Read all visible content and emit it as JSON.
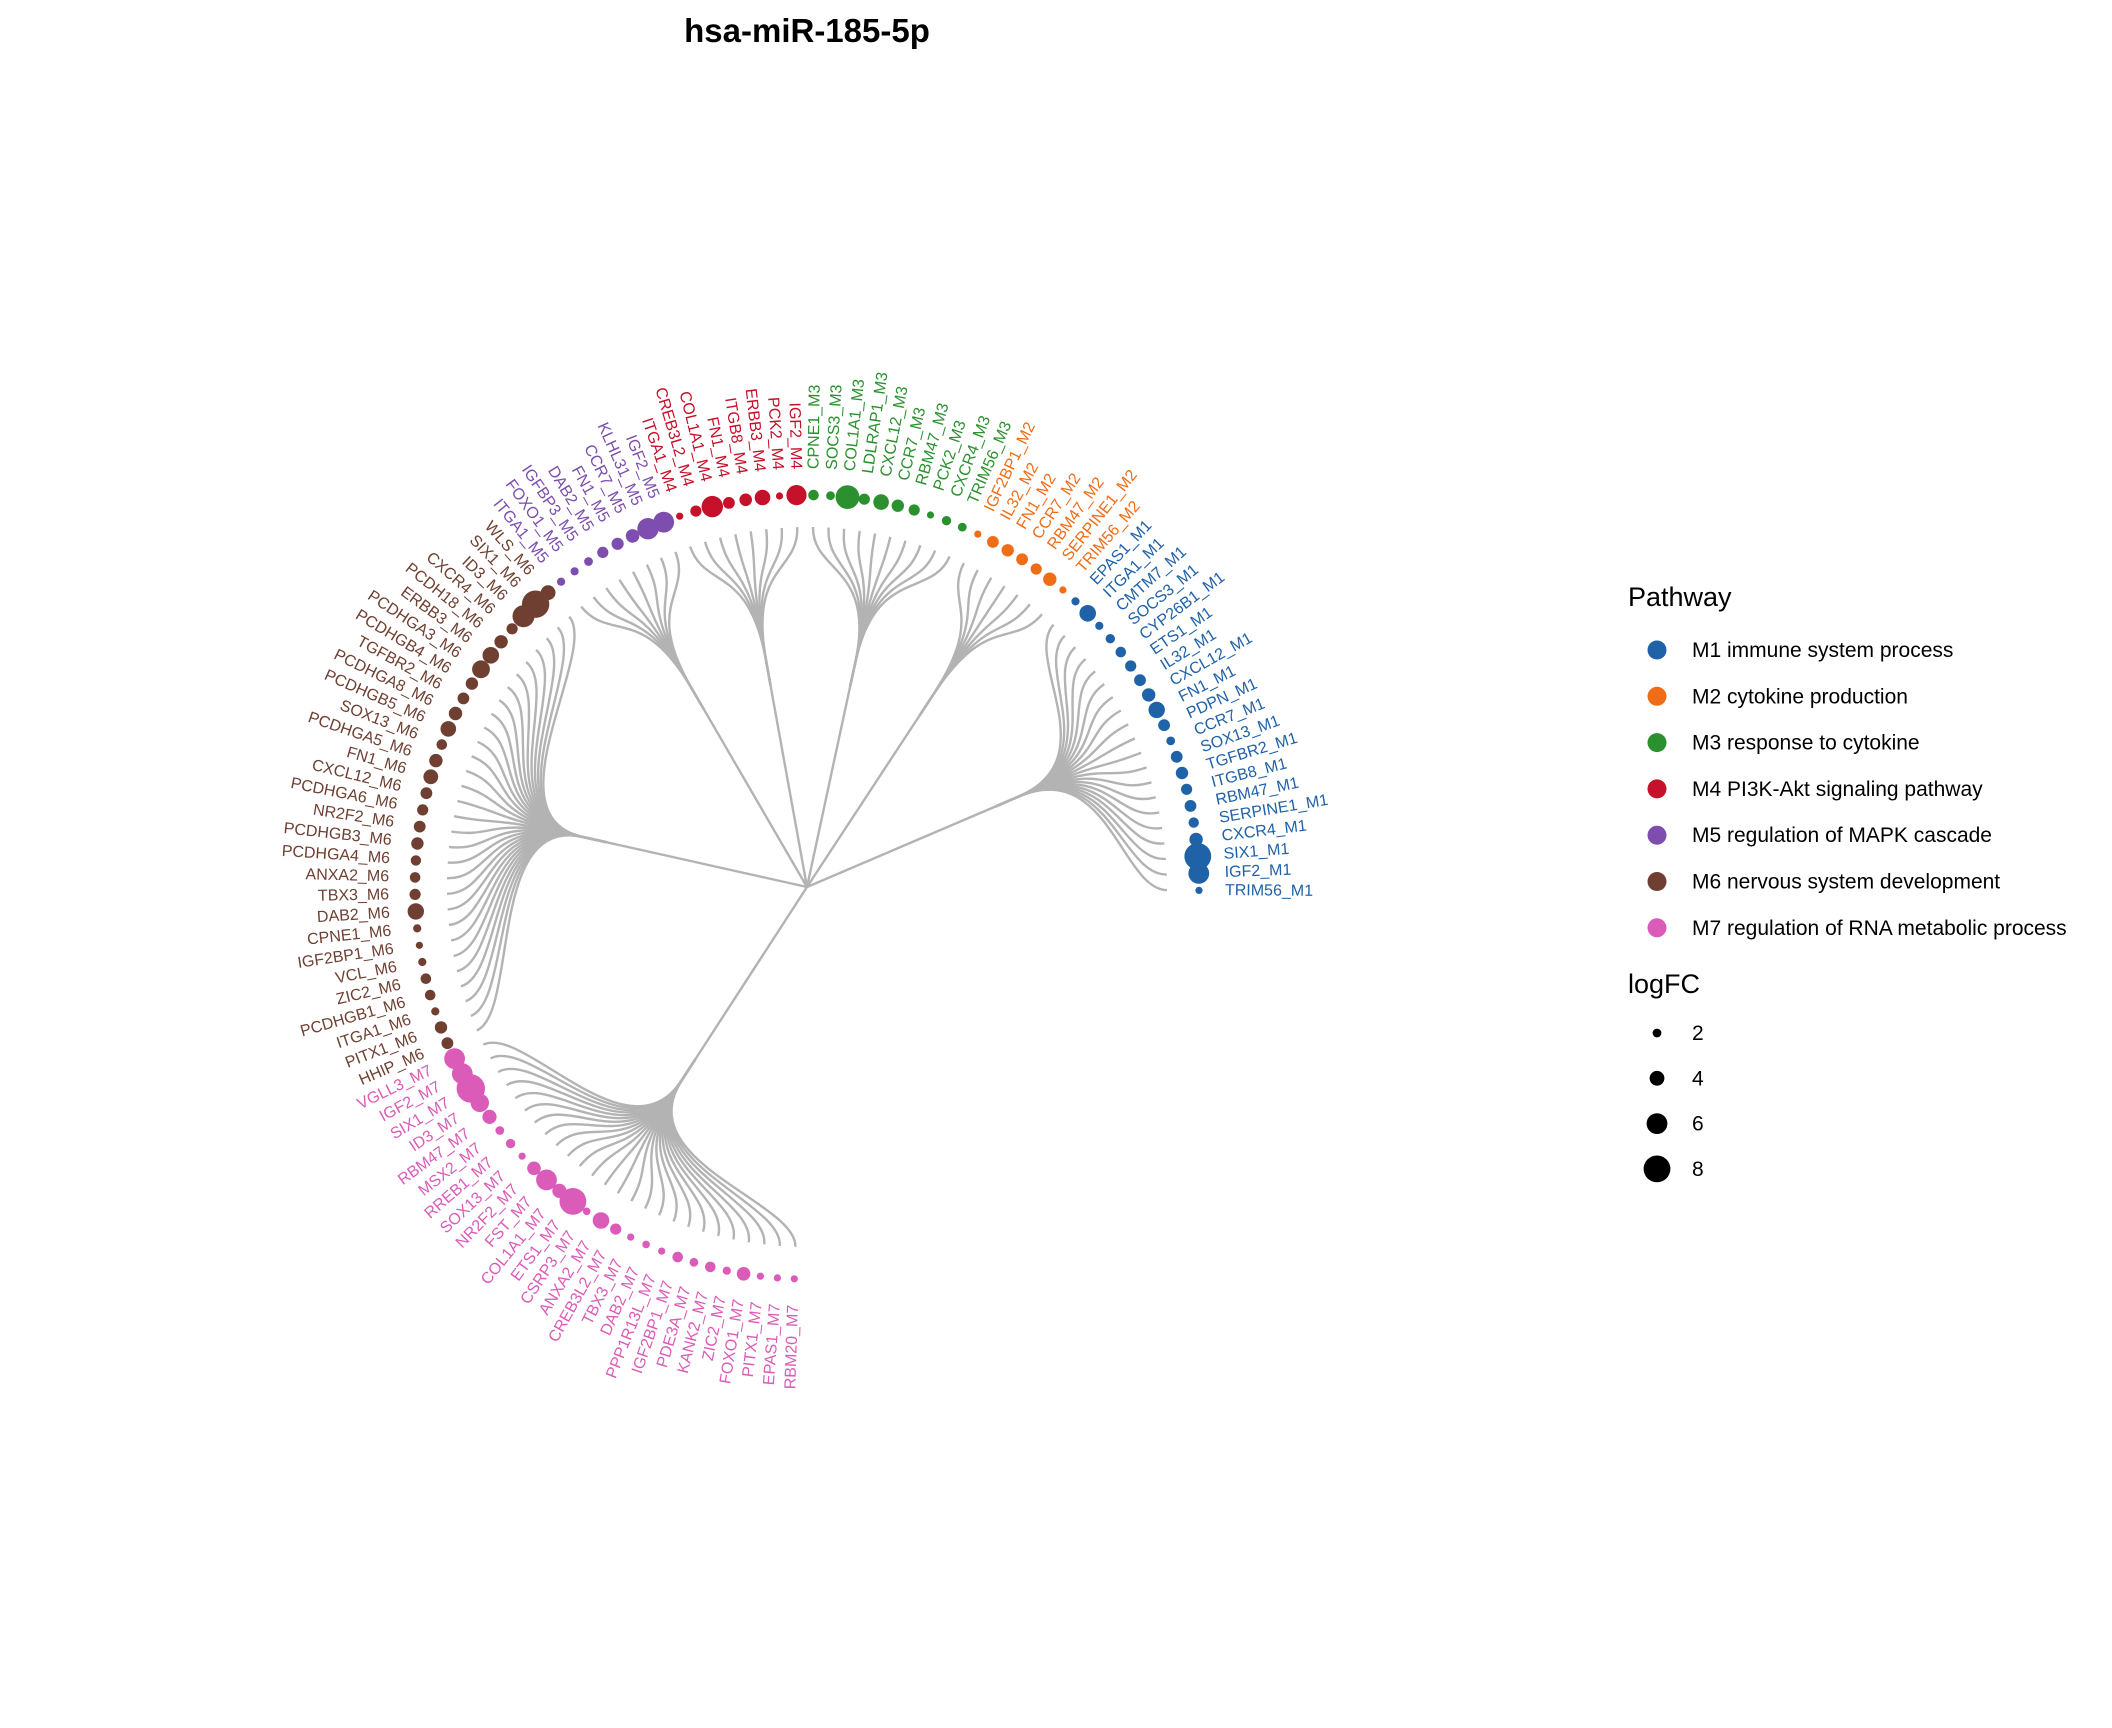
{
  "title": "hsa-miR-185-5p",
  "chart_data": {
    "type": "circular-dendrogram",
    "title": "hsa-miR-185-5p",
    "modules": [
      {
        "id": "M1",
        "label": "M1 immune system process",
        "color": "#2062A8",
        "leaves": [
          {
            "name": "TRIM56_M1",
            "logFC": 1.5
          },
          {
            "name": "IGF2_M1",
            "logFC": 6.0
          },
          {
            "name": "SIX1_M1",
            "logFC": 8.0
          },
          {
            "name": "CXCR4_M1",
            "logFC": 3.5
          },
          {
            "name": "SERPINE1_M1",
            "logFC": 2.5
          },
          {
            "name": "RBM47_M1",
            "logFC": 3.0
          },
          {
            "name": "ITGB8_M1",
            "logFC": 2.8
          },
          {
            "name": "TGFBR2_M1",
            "logFC": 3.2
          },
          {
            "name": "SOX13_M1",
            "logFC": 3.0
          },
          {
            "name": "CCR7_M1",
            "logFC": 2.0
          },
          {
            "name": "PDPN_M1",
            "logFC": 3.0
          },
          {
            "name": "FN1_M1",
            "logFC": 4.5
          },
          {
            "name": "CXCL12_M1",
            "logFC": 3.5
          },
          {
            "name": "IL32_M1",
            "logFC": 3.0
          },
          {
            "name": "ETS1_M1",
            "logFC": 2.8
          },
          {
            "name": "CYP26B1_M1",
            "logFC": 2.6
          },
          {
            "name": "SOCS3_M1",
            "logFC": 2.2
          },
          {
            "name": "CMTM7_M1",
            "logFC": 1.8
          },
          {
            "name": "ITGA1_M1",
            "logFC": 4.6
          },
          {
            "name": "EPAS1_M1",
            "logFC": 1.8
          }
        ]
      },
      {
        "id": "M2",
        "label": "M2 cytokine production",
        "color": "#F06D17",
        "leaves": [
          {
            "name": "TRIM56_M2",
            "logFC": 1.5
          },
          {
            "name": "SERPINE1_M2",
            "logFC": 3.5
          },
          {
            "name": "RBM47_M2",
            "logFC": 2.8
          },
          {
            "name": "CCR7_M2",
            "logFC": 3.0
          },
          {
            "name": "FN1_M2",
            "logFC": 3.2
          },
          {
            "name": "IL32_M2",
            "logFC": 3.0
          },
          {
            "name": "IGF2BP1_M2",
            "logFC": 1.5
          }
        ]
      },
      {
        "id": "M3",
        "label": "M3 response to cytokine",
        "color": "#2B912F",
        "leaves": [
          {
            "name": "TRIM56_M3",
            "logFC": 2.0
          },
          {
            "name": "CXCR4_M3",
            "logFC": 2.2
          },
          {
            "name": "PCK2_M3",
            "logFC": 1.5
          },
          {
            "name": "RBM47_M3",
            "logFC": 2.8
          },
          {
            "name": "CCR7_M3",
            "logFC": 3.2
          },
          {
            "name": "CXCL12_M3",
            "logFC": 4.3
          },
          {
            "name": "LDLRAP1_M3",
            "logFC": 2.8
          },
          {
            "name": "COL1A1_M3",
            "logFC": 7.0
          },
          {
            "name": "SOCS3_M3",
            "logFC": 2.0
          },
          {
            "name": "CPNE1_M3",
            "logFC": 2.6
          }
        ]
      },
      {
        "id": "M4",
        "label": "M4 PI3K-Akt signaling pathway",
        "color": "#C5112A",
        "leaves": [
          {
            "name": "IGF2_M4",
            "logFC": 5.8
          },
          {
            "name": "PCK2_M4",
            "logFC": 1.5
          },
          {
            "name": "ERBB3_M4",
            "logFC": 4.3
          },
          {
            "name": "ITGB8_M4",
            "logFC": 3.3
          },
          {
            "name": "FN1_M4",
            "logFC": 3.0
          },
          {
            "name": "COL1A1_M4",
            "logFC": 6.2
          },
          {
            "name": "CREB3L2_M4",
            "logFC": 2.8
          },
          {
            "name": "ITGA1_M4",
            "logFC": 1.5
          }
        ]
      },
      {
        "id": "M5",
        "label": "M5 regulation of MAPK cascade",
        "color": "#7D4EAD",
        "leaves": [
          {
            "name": "IGF2_M5",
            "logFC": 6.0
          },
          {
            "name": "KLHL31_M5",
            "logFC": 6.2
          },
          {
            "name": "CCR7_M5",
            "logFC": 3.6
          },
          {
            "name": "FN1_M5",
            "logFC": 3.1
          },
          {
            "name": "DAB2_M5",
            "logFC": 2.8
          },
          {
            "name": "IGFBP3_M5",
            "logFC": 2.0
          },
          {
            "name": "FOXO1_M5",
            "logFC": 1.8
          },
          {
            "name": "ITGA1_M5",
            "logFC": 1.8
          }
        ]
      },
      {
        "id": "M6",
        "label": "M6 nervous system development",
        "color": "#6F3F31",
        "leaves": [
          {
            "name": "WLS_M6",
            "logFC": 4.0
          },
          {
            "name": "SIX1_M6",
            "logFC": 8.2
          },
          {
            "name": "ID3_M6",
            "logFC": 6.4
          },
          {
            "name": "CXCR4_M6",
            "logFC": 2.8
          },
          {
            "name": "PCDH18_M6",
            "logFC": 3.5
          },
          {
            "name": "ERBB3_M6",
            "logFC": 4.6
          },
          {
            "name": "PCDHGA3_M6",
            "logFC": 5.0
          },
          {
            "name": "PCDHGB4_M6",
            "logFC": 3.2
          },
          {
            "name": "TGFBR2_M6",
            "logFC": 3.0
          },
          {
            "name": "PCDHGA8_M6",
            "logFC": 3.5
          },
          {
            "name": "PCDHGB5_M6",
            "logFC": 4.3
          },
          {
            "name": "SOX13_M6",
            "logFC": 2.6
          },
          {
            "name": "PCDHGA5_M6",
            "logFC": 3.5
          },
          {
            "name": "FN1_M6",
            "logFC": 4.0
          },
          {
            "name": "CXCL12_M6",
            "logFC": 3.0
          },
          {
            "name": "PCDHGA6_M6",
            "logFC": 2.8
          },
          {
            "name": "NR2F2_M6",
            "logFC": 3.0
          },
          {
            "name": "PCDHGB3_M6",
            "logFC": 3.2
          },
          {
            "name": "PCDHGA4_M6",
            "logFC": 2.5
          },
          {
            "name": "ANXA2_M6",
            "logFC": 2.6
          },
          {
            "name": "TBX3_M6",
            "logFC": 2.8
          },
          {
            "name": "DAB2_M6",
            "logFC": 4.5
          },
          {
            "name": "CPNE1_M6",
            "logFC": 1.8
          },
          {
            "name": "IGF2BP1_M6",
            "logFC": 1.5
          },
          {
            "name": "VCL_M6",
            "logFC": 1.8
          },
          {
            "name": "ZIC2_M6",
            "logFC": 2.6
          },
          {
            "name": "PCDHGB1_M6",
            "logFC": 2.6
          },
          {
            "name": "ITGA1_M6",
            "logFC": 1.8
          },
          {
            "name": "PITX1_M6",
            "logFC": 3.2
          },
          {
            "name": "HHIP_M6",
            "logFC": 3.0
          }
        ]
      },
      {
        "id": "M7",
        "label": "M7 regulation of RNA metabolic process",
        "color": "#DA5CB8",
        "leaves": [
          {
            "name": "VGLL3_M7",
            "logFC": 6.0
          },
          {
            "name": "IGF2_M7",
            "logFC": 6.0
          },
          {
            "name": "SIX1_M7",
            "logFC": 8.5
          },
          {
            "name": "ID3_M7",
            "logFC": 5.2
          },
          {
            "name": "RBM47_M7",
            "logFC": 3.8
          },
          {
            "name": "MSX2_M7",
            "logFC": 2.0
          },
          {
            "name": "RREB1_M7",
            "logFC": 2.2
          },
          {
            "name": "SOX13_M7",
            "logFC": 1.5
          },
          {
            "name": "NR2F2_M7",
            "logFC": 3.6
          },
          {
            "name": "FST_M7",
            "logFC": 6.0
          },
          {
            "name": "COL1A1_M7",
            "logFC": 3.8
          },
          {
            "name": "ETS1_M7",
            "logFC": 8.0
          },
          {
            "name": "CSRP3_M7",
            "logFC": 1.6
          },
          {
            "name": "ANXA2_M7",
            "logFC": 4.6
          },
          {
            "name": "CREB3L2_M7",
            "logFC": 2.8
          },
          {
            "name": "TBX3_M7",
            "logFC": 1.5
          },
          {
            "name": "DAB2_M7",
            "logFC": 1.6
          },
          {
            "name": "PPP1R13L_M7",
            "logFC": 1.5
          },
          {
            "name": "IGF2BP1_M7",
            "logFC": 2.6
          },
          {
            "name": "PDE3A_M7",
            "logFC": 2.0
          },
          {
            "name": "KANK2_M7",
            "logFC": 2.6
          },
          {
            "name": "ZIC2_M7",
            "logFC": 1.8
          },
          {
            "name": "FOXO1_M7",
            "logFC": 3.6
          },
          {
            "name": "PITX1_M7",
            "logFC": 1.5
          },
          {
            "name": "EPAS1_M7",
            "logFC": 1.5
          },
          {
            "name": "RBM20_M7",
            "logFC": 1.5
          }
        ]
      }
    ]
  },
  "legend": {
    "pathway_title": "Pathway",
    "logfc_title": "logFC",
    "sizes": [
      {
        "label": "2",
        "value": 2
      },
      {
        "label": "4",
        "value": 4
      },
      {
        "label": "6",
        "value": 6
      },
      {
        "label": "8",
        "value": 8
      }
    ]
  }
}
